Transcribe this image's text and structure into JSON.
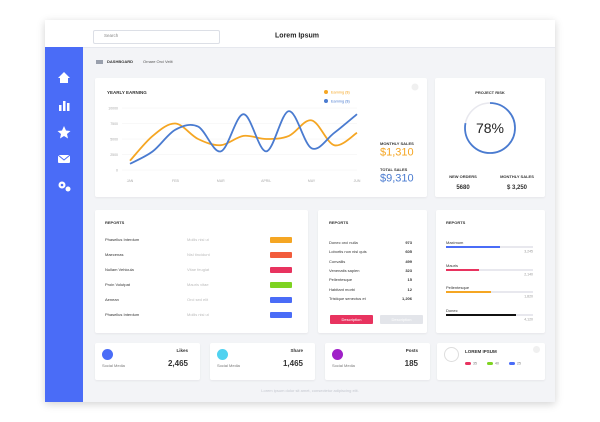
{
  "header": {
    "search": "Search",
    "title": "Lorem Ipsum"
  },
  "breadcrumb": {
    "root": "DASHBOARD",
    "page": "Ornare Orci Velit"
  },
  "chart_data": {
    "type": "line",
    "title": "YEARLY EARNING",
    "categories": [
      "JAN",
      null,
      "FEB",
      null,
      "MAR",
      null,
      "APRIL",
      null,
      "MAY",
      null,
      "JUN"
    ],
    "series": [
      {
        "name": "Earning ($)",
        "color": "#f5a623",
        "values": [
          1500,
          5500,
          7500,
          5000,
          4000,
          5500,
          5000,
          5500,
          8000,
          4000,
          6000
        ]
      },
      {
        "name": "Earning ($)",
        "color": "#4a7bd0",
        "values": [
          1000,
          3000,
          6500,
          7000,
          3000,
          9000,
          3000,
          9500,
          3500,
          6000,
          9000
        ]
      }
    ],
    "ylim": [
      0,
      10000
    ],
    "yticks": [
      0,
      2500,
      5000,
      7500,
      10000
    ],
    "grid": true,
    "legend": "top-right"
  },
  "sales": {
    "monthly_label": "MONTHLY SALES",
    "monthly_value": "$1,310",
    "total_label": "TOTAL SALES",
    "total_value": "$9,310"
  },
  "risk": {
    "title": "PROJECT RISK",
    "value": 78,
    "label": "78%",
    "color": "#4a7bd0",
    "orders_label": "NEW ORDERS",
    "orders_value": "5680",
    "sales_label": "MONTHLY SALES",
    "sales_value": "$ 3,250"
  },
  "reports_table": {
    "title": "REPORTS",
    "rows": [
      {
        "name": "Phasellus Interdum",
        "note": "Mollis nisi ut",
        "color": "#f5a623"
      },
      {
        "name": "Maecenas",
        "note": "Nisl tincidunt",
        "color": "#f25c3c"
      },
      {
        "name": "Nullam Vehicula",
        "note": "Vitae feugiat",
        "color": "#e8335f"
      },
      {
        "name": "Proin Volutpat",
        "note": "Mauris vitae",
        "color": "#7ed321"
      },
      {
        "name": "Aenean",
        "note": "Orci sed elit",
        "color": "#4a6cf7"
      },
      {
        "name": "Phasellus Interdum",
        "note": "Mollis nisi ut",
        "color": "#4a6cf7"
      }
    ]
  },
  "reports_list": {
    "title": "REPORTS",
    "rows": [
      [
        "Donec orci nulla",
        "973"
      ],
      [
        "Lobortis non nisl quis",
        "605"
      ],
      [
        "Convallis",
        "499"
      ],
      [
        "Venenatis sapien",
        "323"
      ],
      [
        "Pellentesque",
        "15"
      ],
      [
        "Habitant morbi",
        "12"
      ],
      [
        "Tristique senectus et",
        "1,206"
      ]
    ],
    "buttons": [
      "Description",
      "Description"
    ]
  },
  "reports_bars": {
    "title": "REPORTS",
    "bars": [
      {
        "name": "Maximum",
        "value": "3,245",
        "percent": 62,
        "color": "#4a6cf7"
      },
      {
        "name": "Mauris",
        "value": "2,140",
        "percent": 38,
        "color": "#e8335f"
      },
      {
        "name": "Pellentesque",
        "value": "1,820",
        "percent": 52,
        "color": "#f5a623"
      },
      {
        "name": "Donec",
        "value": "4,120",
        "percent": 80,
        "color": "#111111"
      }
    ]
  },
  "stats": [
    {
      "name": "Likes",
      "caption": "Social Media",
      "value": "2,465",
      "color": "#4a6cf7"
    },
    {
      "name": "Share",
      "caption": "Social Media",
      "value": "1,465",
      "color": "#50d2f0"
    },
    {
      "name": "Posts",
      "caption": "Social Media",
      "value": "185",
      "color": "#a020c8"
    }
  ],
  "legend_card": {
    "title": "LOREM IPSUM",
    "items": [
      {
        "label": "35",
        "color": "#e8335f"
      },
      {
        "label": "40",
        "color": "#7ed321"
      },
      {
        "label": "25",
        "color": "#4a6cf7"
      }
    ]
  },
  "footer": "Lorem ipsum dolor sit amet, consectetur adipiscing elit."
}
